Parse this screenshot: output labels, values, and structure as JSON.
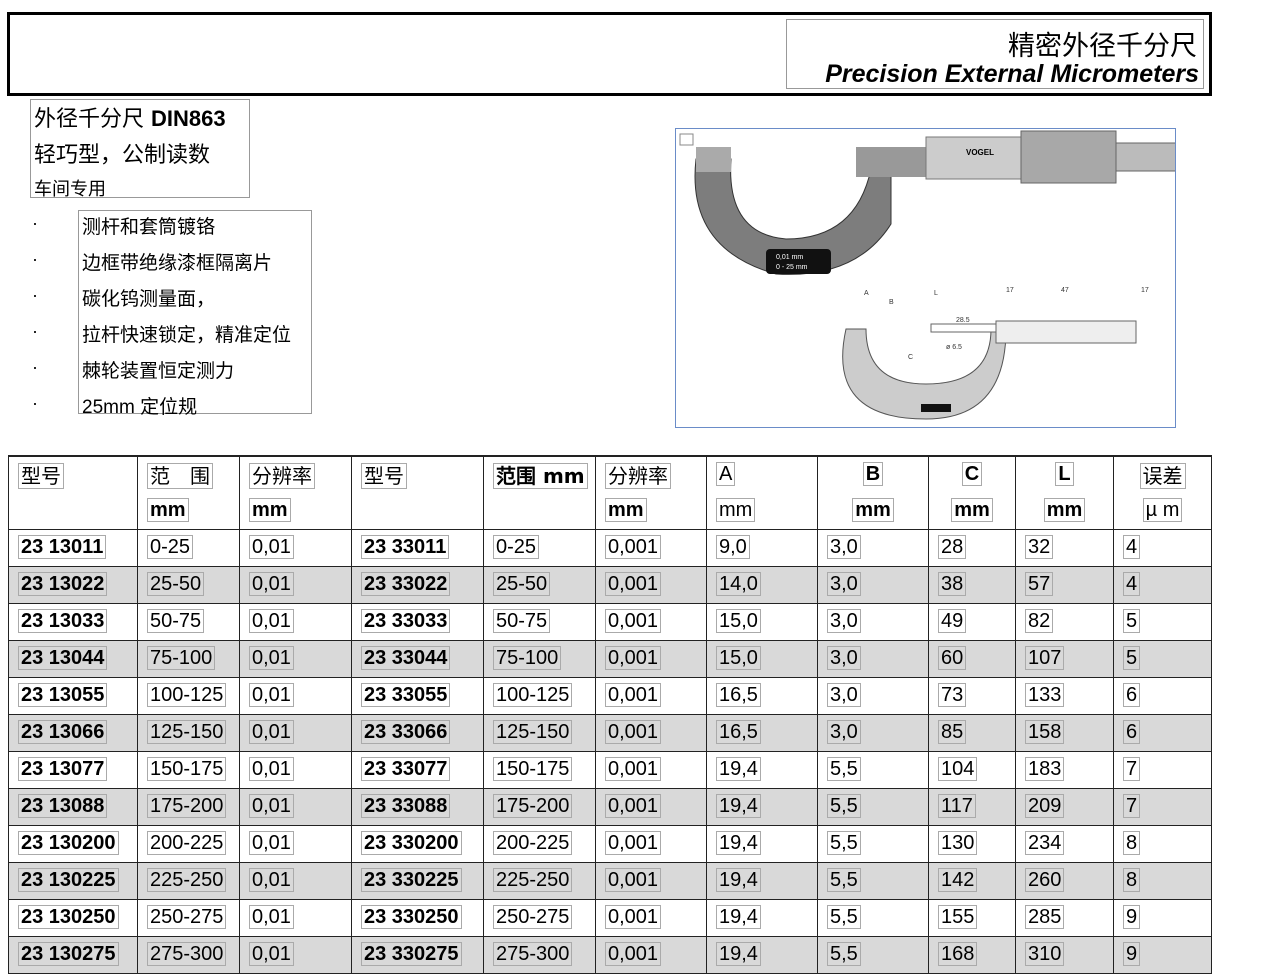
{
  "header": {
    "title_cn": "精密外径千分尺",
    "title_en": "Precision External Micrometers"
  },
  "intro": {
    "line1_cn": "外径千分尺 ",
    "line1_std": "DIN863",
    "line2": "轻巧型，公制读数",
    "line3": "车间专用"
  },
  "features": [
    "测杆和套筒镀铬",
    "边框带绝缘漆框隔离片",
    "碳化钨测量面，",
    "拉杆快速锁定，精准定位",
    "棘轮装置恒定测力",
    "25mm 定位规"
  ],
  "bullet": "·",
  "image": {
    "brand": "VOGEL",
    "scale_label": "0,01 mm",
    "range_label": "0 - 25 mm",
    "dims": [
      "A",
      "B",
      "L",
      "C",
      "17",
      "47",
      "17",
      "28.5",
      "ø 6.5"
    ]
  },
  "table": {
    "headers": [
      "型号",
      "范　围",
      "分辨率",
      "型号",
      "范围 mm",
      "分辨率",
      "A",
      "B",
      "C",
      "L",
      "误差"
    ],
    "units": [
      "",
      "mm",
      "mm",
      "",
      "",
      "mm",
      "mm",
      "mm",
      "mm",
      "mm",
      "µ m"
    ],
    "rows": [
      [
        "23 13011",
        "0-25",
        "0,01",
        "23 33011",
        "0-25",
        "0,001",
        "9,0",
        "3,0",
        "28",
        "32",
        "4"
      ],
      [
        "23 13022",
        "25-50",
        "0,01",
        "23 33022",
        "25-50",
        "0,001",
        "14,0",
        "3,0",
        "38",
        "57",
        "4"
      ],
      [
        "23 13033",
        "50-75",
        "0,01",
        "23 33033",
        "50-75",
        "0,001",
        "15,0",
        "3,0",
        "49",
        "82",
        "5"
      ],
      [
        "23 13044",
        "75-100",
        "0,01",
        "23 33044",
        "75-100",
        "0,001",
        "15,0",
        "3,0",
        "60",
        "107",
        "5"
      ],
      [
        "23 13055",
        "100-125",
        "0,01",
        "23 33055",
        "100-125",
        "0,001",
        "16,5",
        "3,0",
        "73",
        "133",
        "6"
      ],
      [
        "23 13066",
        "125-150",
        "0,01",
        "23 33066",
        "125-150",
        "0,001",
        "16,5",
        "3,0",
        "85",
        "158",
        "6"
      ],
      [
        "23 13077",
        "150-175",
        "0,01",
        "23 33077",
        "150-175",
        "0,001",
        "19,4",
        "5,5",
        "104",
        "183",
        "7"
      ],
      [
        "23 13088",
        "175-200",
        "0,01",
        "23 33088",
        "175-200",
        "0,001",
        "19,4",
        "5,5",
        "117",
        "209",
        "7"
      ],
      [
        "23 130200",
        "200-225",
        "0,01",
        "23 330200",
        "200-225",
        "0,001",
        "19,4",
        "5,5",
        "130",
        "234",
        "8"
      ],
      [
        "23 130225",
        "225-250",
        "0,01",
        "23 330225",
        "225-250",
        "0,001",
        "19,4",
        "5,5",
        "142",
        "260",
        "8"
      ],
      [
        "23 130250",
        "250-275",
        "0,01",
        "23 330250",
        "250-275",
        "0,001",
        "19,4",
        "5,5",
        "155",
        "285",
        "9"
      ],
      [
        "23 130275",
        "275-300",
        "0,01",
        "23 330275",
        "275-300",
        "0,001",
        "19,4",
        "5,5",
        "168",
        "310",
        "9"
      ]
    ]
  }
}
